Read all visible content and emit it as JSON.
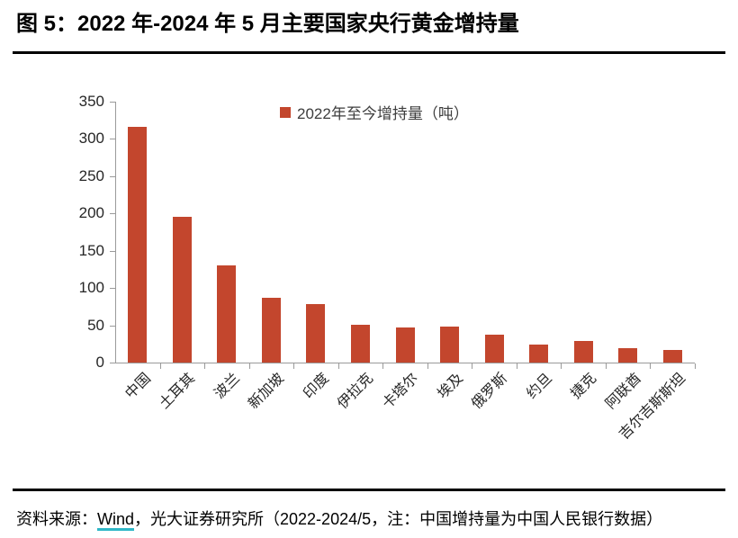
{
  "header": {
    "title": "图 5：2022 年-2024 年 5 月主要国家央行黄金增持量"
  },
  "chart_data": {
    "type": "bar",
    "title": "图 5：2022 年-2024 年 5 月主要国家央行黄金增持量",
    "legend": "2022年至今增持量（吨）",
    "legend_position": "top-center",
    "categories": [
      "中国",
      "土耳其",
      "波兰",
      "新加坡",
      "印度",
      "伊拉克",
      "卡塔尔",
      "埃及",
      "俄罗斯",
      "约旦",
      "捷克",
      "阿联酋",
      "吉尔吉斯斯坦"
    ],
    "values": [
      316,
      195,
      130,
      87,
      78,
      51,
      47,
      48,
      38,
      24,
      29,
      19,
      17
    ],
    "xlabel": "",
    "ylabel": "",
    "ylim": [
      0,
      350
    ],
    "yticks": [
      0,
      50,
      100,
      150,
      200,
      250,
      300,
      350
    ],
    "grid": false,
    "bar_color": "#C3462D",
    "axis_color": "#9A9A9A"
  },
  "footer": {
    "prefix": "资料来源：",
    "link_text": "Wind",
    "suffix": "，光大证券研究所（2022-2024/5，注：中国增持量为中国人民银行数据）",
    "link_underline_color": "#2FB7C7"
  }
}
